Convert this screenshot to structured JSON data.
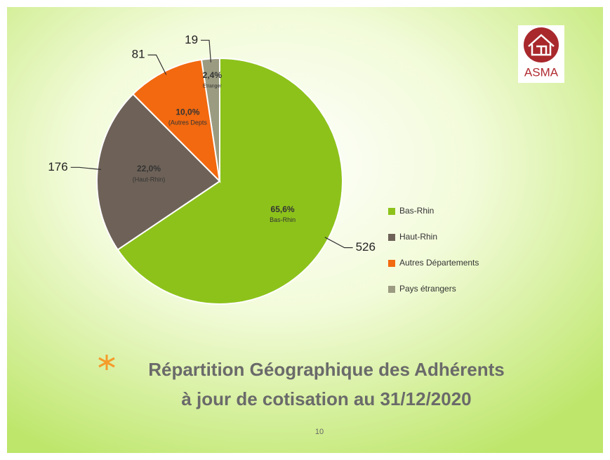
{
  "chart_data": {
    "type": "pie",
    "title": [
      "Répartition Géographique des Adhérents",
      "à jour de cotisation au 31/12/2020"
    ],
    "categories": [
      "Bas-Rhin",
      "Haut-Rhin",
      "Autres Départements",
      "Pays étrangers"
    ],
    "values": [
      526,
      176,
      81,
      19
    ],
    "percent_labels": [
      "65,6%",
      "22,0%",
      "10,0%",
      "2,4%"
    ],
    "inner_labels": [
      "Bas-Rhin",
      "(Haut-Rhin)",
      "(Autres   Depts",
      "Etranger"
    ],
    "colors": [
      "#8dc21b",
      "#6e6258",
      "#f2690f",
      "#9b9b82"
    ],
    "legend": "right"
  },
  "logo": "ASMA",
  "page_number": "10"
}
